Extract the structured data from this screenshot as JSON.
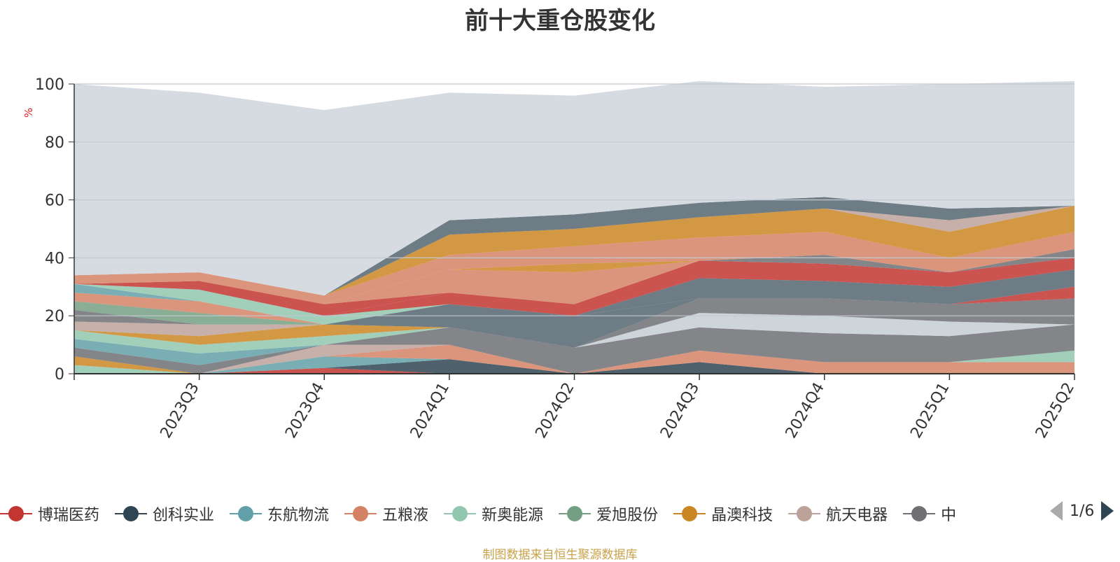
{
  "title": "前十大重仓股变化",
  "unit": "%",
  "source": "制图数据来自恒生聚源数据库",
  "pager": {
    "text": "1/6"
  },
  "colors": {
    "background_area": "#d6dbe2",
    "axis": "#333333",
    "grid": "#c3c8d0"
  },
  "chart_data": {
    "type": "area",
    "stacked": true,
    "x": [
      "",
      "2023Q3",
      "2023Q4",
      "2024Q1",
      "2024Q2",
      "2024Q3",
      "2024Q4",
      "2025Q1",
      "2025Q2"
    ],
    "yticks": [
      0,
      20,
      40,
      60,
      80,
      100
    ],
    "ylim": [
      0,
      100
    ],
    "grid": true,
    "legend_position": "bottom",
    "series": [
      {
        "name": "博瑞医药",
        "color": "#c23531",
        "values": [
          0,
          0,
          2,
          0,
          0,
          0,
          0,
          0,
          0
        ]
      },
      {
        "name": "创科实业",
        "color": "#2f4554",
        "values": [
          0,
          0,
          0,
          5,
          0,
          4,
          0,
          0,
          0
        ]
      },
      {
        "name": "东航物流",
        "color": "#61a0a8",
        "values": [
          0,
          0,
          4,
          0,
          0,
          0,
          0,
          0,
          0
        ]
      },
      {
        "name": "五粮液",
        "color": "#d48265",
        "values": [
          0,
          0,
          0,
          5,
          0,
          4,
          4,
          4,
          4
        ]
      },
      {
        "name": "新奥能源",
        "color": "#91c7ae",
        "values": [
          3,
          0,
          0,
          0,
          0,
          0,
          0,
          0,
          4
        ]
      },
      {
        "name": "爱旭股份",
        "color": "#749f83",
        "values": [
          0,
          0,
          0,
          0,
          0,
          0,
          0,
          0,
          0
        ]
      },
      {
        "name": "晶澳科技",
        "color": "#ca8622",
        "values": [
          3,
          0,
          0,
          0,
          0,
          0,
          0,
          0,
          0
        ]
      },
      {
        "name": "航天电器",
        "color": "#bda29a",
        "values": [
          0,
          0,
          4,
          0,
          0,
          0,
          0,
          0,
          0
        ]
      },
      {
        "name": "中",
        "color": "#6e7074",
        "values": [
          3,
          3,
          0,
          6,
          9,
          8,
          10,
          9,
          9
        ]
      },
      {
        "name": "",
        "color": "#546570",
        "values": [
          0,
          0,
          0,
          0,
          0,
          0,
          0,
          0,
          0
        ]
      },
      {
        "name": "",
        "color": "#c4ccd3",
        "values": [
          0,
          0,
          0,
          0,
          0,
          5,
          6,
          5,
          0
        ]
      },
      {
        "name": "",
        "color": "#6e7074",
        "values": [
          0,
          0,
          0,
          0,
          0,
          5,
          6,
          6,
          9
        ]
      },
      {
        "name": "",
        "color": "#61a0a8",
        "values": [
          3,
          4,
          0,
          0,
          0,
          0,
          0,
          0,
          0
        ]
      },
      {
        "name": "",
        "color": "#91c7ae",
        "values": [
          3,
          3,
          3,
          0,
          0,
          0,
          0,
          0,
          0
        ]
      },
      {
        "name": "",
        "color": "#ca8622",
        "values": [
          0,
          3,
          4,
          0,
          0,
          0,
          0,
          0,
          0
        ]
      },
      {
        "name": "",
        "color": "#bda29a",
        "values": [
          3,
          4,
          0,
          0,
          0,
          0,
          0,
          0,
          0
        ]
      },
      {
        "name": "",
        "color": "#c23531",
        "values": [
          0,
          0,
          0,
          0,
          0,
          0,
          0,
          0,
          4
        ]
      },
      {
        "name": "",
        "color": "#6e7074",
        "values": [
          4,
          0,
          0,
          0,
          0,
          0,
          0,
          0,
          0
        ]
      },
      {
        "name": "",
        "color": "#2f4554",
        "values": [
          0,
          0,
          0,
          0,
          0,
          0,
          0,
          0,
          0
        ]
      },
      {
        "name": "",
        "color": "#546570",
        "values": [
          0,
          0,
          0,
          8,
          11,
          0,
          0,
          0,
          0
        ]
      },
      {
        "name": "",
        "color": "#749f83",
        "values": [
          3,
          4,
          0,
          0,
          0,
          0,
          0,
          0,
          0
        ]
      },
      {
        "name": "",
        "color": "#d48265",
        "values": [
          3,
          4,
          0,
          0,
          0,
          0,
          0,
          0,
          0
        ]
      },
      {
        "name": "",
        "color": "#61a0a8",
        "values": [
          3,
          0,
          0,
          0,
          0,
          0,
          0,
          0,
          0
        ]
      },
      {
        "name": "",
        "color": "#91c7ae",
        "values": [
          0,
          4,
          3,
          0,
          0,
          0,
          0,
          0,
          0
        ]
      },
      {
        "name": "",
        "color": "#546570",
        "values": [
          0,
          0,
          0,
          0,
          0,
          7,
          6,
          6,
          6
        ]
      },
      {
        "name": "",
        "color": "#c23531",
        "values": [
          0,
          0,
          0,
          4,
          4,
          6,
          6,
          5,
          4
        ]
      },
      {
        "name": "",
        "color": "#c23531",
        "values": [
          0,
          3,
          4,
          0,
          0,
          0,
          0,
          0,
          0
        ]
      },
      {
        "name": "",
        "color": "#6e7074",
        "values": [
          0,
          0,
          0,
          0,
          0,
          0,
          3,
          0,
          3
        ]
      },
      {
        "name": "",
        "color": "#d48265",
        "values": [
          0,
          0,
          0,
          8,
          11,
          0,
          0,
          0,
          0
        ]
      },
      {
        "name": "",
        "color": "#ca8622",
        "values": [
          0,
          0,
          0,
          0,
          3,
          0,
          0,
          0,
          0
        ]
      },
      {
        "name": "",
        "color": "#d48265",
        "values": [
          3,
          3,
          3,
          5,
          6,
          8,
          8,
          5,
          6
        ]
      },
      {
        "name": "",
        "color": "#ca8622",
        "values": [
          0,
          0,
          0,
          7,
          6,
          7,
          8,
          9,
          9
        ]
      },
      {
        "name": "",
        "color": "#bda29a",
        "values": [
          0,
          0,
          0,
          0,
          0,
          0,
          0,
          4,
          0
        ]
      },
      {
        "name": "",
        "color": "#546570",
        "values": [
          0,
          0,
          0,
          5,
          5,
          5,
          4,
          4,
          0
        ]
      },
      {
        "name": "",
        "color": "#d6dbe2",
        "values": [
          66,
          62,
          64,
          44,
          41,
          42,
          38,
          43,
          43
        ]
      },
      {
        "name": "",
        "color": "#ffffff",
        "values": [
          0,
          2,
          0,
          0,
          0,
          0,
          0,
          0,
          0
        ]
      }
    ]
  }
}
